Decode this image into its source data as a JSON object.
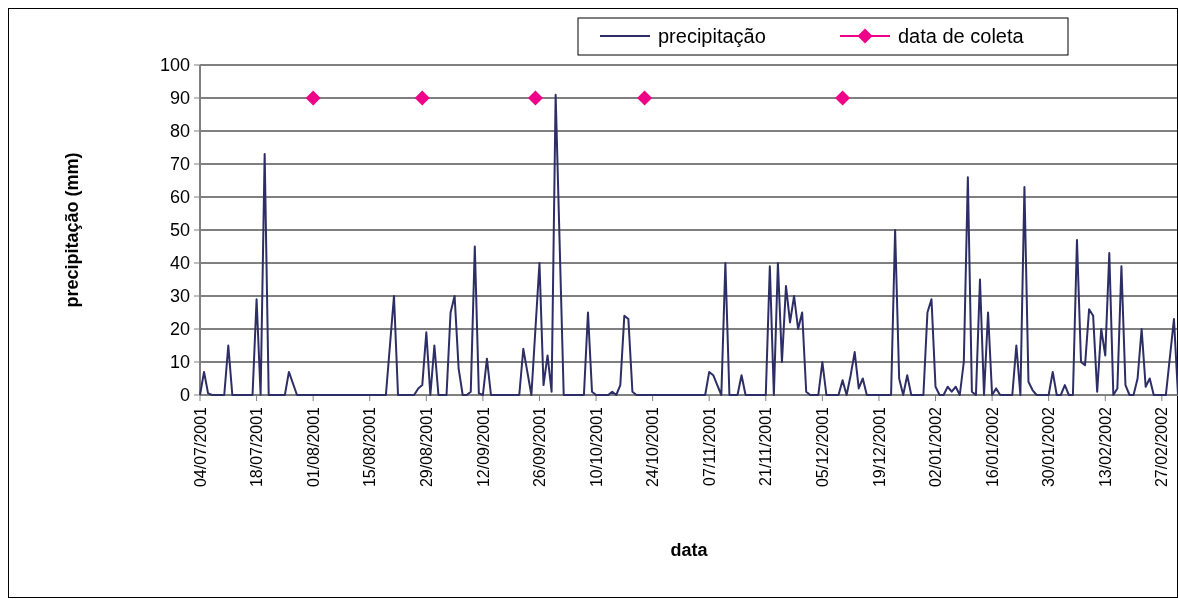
{
  "chart_data": {
    "type": "line",
    "xlabel": "data",
    "ylabel": "precipitação (mm)",
    "xlim": [
      "2001-07-04",
      "2002-03-03"
    ],
    "xticks": [
      {
        "value": "2001-07-04",
        "label": "04/07/2001"
      },
      {
        "value": "2001-07-18",
        "label": "18/07/2001"
      },
      {
        "value": "2001-08-01",
        "label": "01/08/2001"
      },
      {
        "value": "2001-08-15",
        "label": "15/08/2001"
      },
      {
        "value": "2001-08-29",
        "label": "29/08/2001"
      },
      {
        "value": "2001-09-12",
        "label": "12/09/2001"
      },
      {
        "value": "2001-09-26",
        "label": "26/09/2001"
      },
      {
        "value": "2001-10-10",
        "label": "10/10/2001"
      },
      {
        "value": "2001-10-24",
        "label": "24/10/2001"
      },
      {
        "value": "2001-11-07",
        "label": "07/11/2001"
      },
      {
        "value": "2001-11-21",
        "label": "21/11/2001"
      },
      {
        "value": "2001-12-05",
        "label": "05/12/2001"
      },
      {
        "value": "2001-12-19",
        "label": "19/12/2001"
      },
      {
        "value": "2002-01-02",
        "label": "02/01/2002"
      },
      {
        "value": "2002-01-16",
        "label": "16/01/2002"
      },
      {
        "value": "2002-01-30",
        "label": "30/01/2002"
      },
      {
        "value": "2002-02-13",
        "label": "13/02/2002"
      },
      {
        "value": "2002-02-27",
        "label": "27/02/2002"
      }
    ],
    "ylim": [
      0,
      100
    ],
    "yticks": [
      0,
      10,
      20,
      30,
      40,
      50,
      60,
      70,
      80,
      90,
      100
    ],
    "grid": "y",
    "legend": "top right",
    "series": [
      {
        "name": "precipitação",
        "color": "#2e2e66",
        "marker": "none",
        "x": [
          "2001-07-04",
          "2001-07-05",
          "2001-07-06",
          "2001-07-07",
          "2001-07-10",
          "2001-07-11",
          "2001-07-12",
          "2001-07-17",
          "2001-07-18",
          "2001-07-19",
          "2001-07-20",
          "2001-07-21",
          "2001-07-25",
          "2001-07-26",
          "2001-07-28",
          "2001-08-19",
          "2001-08-21",
          "2001-08-22",
          "2001-08-26",
          "2001-08-27",
          "2001-08-28",
          "2001-08-29",
          "2001-08-30",
          "2001-08-31",
          "2001-09-01",
          "2001-09-03",
          "2001-09-04",
          "2001-09-05",
          "2001-09-06",
          "2001-09-07",
          "2001-09-08",
          "2001-09-09",
          "2001-09-10",
          "2001-09-11",
          "2001-09-12",
          "2001-09-13",
          "2001-09-14",
          "2001-09-21",
          "2001-09-22",
          "2001-09-23",
          "2001-09-24",
          "2001-09-26",
          "2001-09-27",
          "2001-09-28",
          "2001-09-29",
          "2001-09-30",
          "2001-10-02",
          "2001-10-07",
          "2001-10-08",
          "2001-10-09",
          "2001-10-10",
          "2001-10-13",
          "2001-10-14",
          "2001-10-15",
          "2001-10-16",
          "2001-10-17",
          "2001-10-18",
          "2001-10-19",
          "2001-10-20",
          "2001-11-06",
          "2001-11-07",
          "2001-11-08",
          "2001-11-09",
          "2001-11-10",
          "2001-11-11",
          "2001-11-12",
          "2001-11-14",
          "2001-11-15",
          "2001-11-16",
          "2001-11-21",
          "2001-11-22",
          "2001-11-23",
          "2001-11-24",
          "2001-11-25",
          "2001-11-26",
          "2001-11-27",
          "2001-11-28",
          "2001-11-29",
          "2001-11-30",
          "2001-12-01",
          "2001-12-02",
          "2001-12-04",
          "2001-12-05",
          "2001-12-06",
          "2001-12-09",
          "2001-12-10",
          "2001-12-11",
          "2001-12-12",
          "2001-12-13",
          "2001-12-14",
          "2001-12-15",
          "2001-12-16",
          "2001-12-22",
          "2001-12-23",
          "2001-12-24",
          "2001-12-25",
          "2001-12-26",
          "2001-12-27",
          "2001-12-30",
          "2001-12-31",
          "2002-01-01",
          "2002-01-02",
          "2002-01-03",
          "2002-01-04",
          "2002-01-05",
          "2002-01-06",
          "2002-01-07",
          "2002-01-08",
          "2002-01-09",
          "2002-01-10",
          "2002-01-11",
          "2002-01-12",
          "2002-01-13",
          "2002-01-14",
          "2002-01-15",
          "2002-01-16",
          "2002-01-17",
          "2002-01-18",
          "2002-01-21",
          "2002-01-22",
          "2002-01-23",
          "2002-01-24",
          "2002-01-25",
          "2002-01-26",
          "2002-01-27",
          "2002-01-30",
          "2002-01-31",
          "2002-02-01",
          "2002-02-02",
          "2002-02-03",
          "2002-02-04",
          "2002-02-05",
          "2002-02-06",
          "2002-02-07",
          "2002-02-08",
          "2002-02-09",
          "2002-02-10",
          "2002-02-11",
          "2002-02-12",
          "2002-02-13",
          "2002-02-14",
          "2002-02-15",
          "2002-02-16",
          "2002-02-17",
          "2002-02-18",
          "2002-02-19",
          "2002-02-20",
          "2002-02-21",
          "2002-02-22",
          "2002-02-23",
          "2002-02-24",
          "2002-02-25",
          "2002-02-28",
          "2002-03-02",
          "2002-03-03"
        ],
        "values": [
          0,
          7,
          0.5,
          0,
          0,
          15,
          0,
          0,
          29,
          0,
          73,
          0,
          0,
          7,
          0,
          0,
          30,
          0,
          0,
          2,
          3,
          19,
          0,
          15,
          0,
          0,
          25,
          30,
          8,
          0,
          0,
          1,
          45,
          0.5,
          0,
          11,
          0,
          0,
          14,
          7,
          0,
          40,
          3,
          12,
          1,
          91,
          0,
          0,
          25,
          1,
          0,
          0,
          1,
          0,
          3,
          24,
          23,
          1,
          0,
          0,
          7,
          6,
          3,
          0,
          40,
          0,
          0,
          6,
          0,
          0,
          39,
          0,
          40,
          10,
          33,
          22,
          30,
          20,
          25,
          1,
          0,
          0,
          10,
          0,
          0,
          4.5,
          0,
          6,
          13,
          2,
          5,
          0,
          0,
          50,
          5,
          0,
          6,
          0,
          0,
          25,
          29,
          2.5,
          0,
          0,
          2.5,
          1,
          2.5,
          0,
          10,
          66,
          1,
          0,
          35,
          0,
          25,
          0,
          2,
          0,
          0,
          15,
          0,
          63,
          4,
          1.5,
          0,
          0,
          7,
          0,
          0,
          3,
          0,
          0,
          47,
          10,
          9,
          26,
          24,
          1,
          20,
          12,
          43,
          0,
          2,
          39,
          3,
          0,
          0,
          5,
          20,
          2.5,
          5,
          0,
          0,
          23,
          0
        ]
      },
      {
        "name": "data de coleta",
        "type": "scatter",
        "color": "#ee0088",
        "marker": "diamond",
        "x": [
          "2001-08-01",
          "2001-08-28",
          "2001-09-25",
          "2001-10-22",
          "2001-12-10"
        ],
        "values": [
          90,
          90,
          90,
          90,
          90
        ]
      }
    ]
  }
}
